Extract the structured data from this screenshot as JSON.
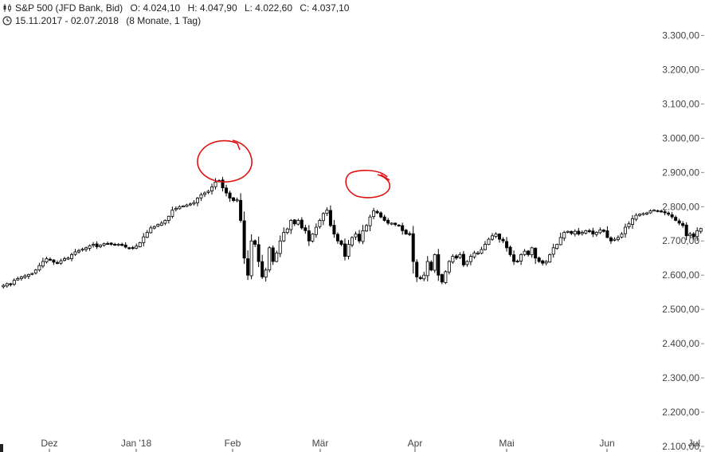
{
  "header": {
    "instrument": "S&P 500 (JFD Bank, Bid)",
    "open": "O: 4.024,10",
    "high": "H: 4.047,90",
    "low": "L: 4.022,60",
    "close": "C: 4.037,10",
    "range": "15.11.2017 - 02.07.2018",
    "period": "(8 Monate, 1 Tag)",
    "instrument_icon": "candlestick-icon",
    "range_icon": "clock-icon"
  },
  "colors": {
    "candle": "#000000",
    "annotation": "#e01010",
    "text": "#444444"
  },
  "chart_data": {
    "type": "candlestick",
    "x_range": [
      "15.11.2017",
      "02.07.2018"
    ],
    "ylim": [
      2100,
      3350
    ],
    "y_ticks": [
      "2.100,00",
      "2.200,00",
      "2.300,00",
      "2.400,00",
      "2.500,00",
      "2.600,00",
      "2.700,00",
      "2.800,00",
      "2.900,00",
      "3.000,00",
      "3.100,00",
      "3.200,00",
      "3.300,00"
    ],
    "x_ticks": [
      "Dez",
      "Jan '18",
      "Feb",
      "Mär",
      "Apr",
      "Mai",
      "Jun",
      "Jul"
    ],
    "grid": false,
    "annotations": [
      "red hand-drawn circle around late-January peak",
      "red hand-drawn circle around mid-March high"
    ],
    "closes": [
      2570,
      2575,
      2573,
      2585,
      2590,
      2595,
      2598,
      2602,
      2605,
      2615,
      2628,
      2640,
      2648,
      2645,
      2638,
      2636,
      2642,
      2648,
      2650,
      2660,
      2668,
      2672,
      2676,
      2680,
      2686,
      2690,
      2683,
      2688,
      2692,
      2692,
      2690,
      2688,
      2690,
      2687,
      2682,
      2680,
      2680,
      2685,
      2695,
      2712,
      2725,
      2738,
      2742,
      2748,
      2752,
      2760,
      2772,
      2790,
      2795,
      2800,
      2802,
      2805,
      2808,
      2812,
      2825,
      2835,
      2840,
      2845,
      2858,
      2872,
      2876,
      2855,
      2840,
      2825,
      2818,
      2820,
      2760,
      2650,
      2600,
      2700,
      2690,
      2640,
      2595,
      2615,
      2680,
      2640,
      2665,
      2700,
      2725,
      2735,
      2760,
      2750,
      2760,
      2738,
      2730,
      2700,
      2720,
      2740,
      2760,
      2780,
      2790,
      2745,
      2720,
      2700,
      2690,
      2655,
      2690,
      2710,
      2720,
      2700,
      2730,
      2745,
      2770,
      2788,
      2782,
      2770,
      2760,
      2752,
      2752,
      2748,
      2745,
      2730,
      2720,
      2720,
      2640,
      2595,
      2590,
      2600,
      2640,
      2615,
      2660,
      2600,
      2580,
      2610,
      2640,
      2655,
      2650,
      2660,
      2630,
      2640,
      2655,
      2665,
      2665,
      2675,
      2690,
      2705,
      2715,
      2720,
      2705,
      2700,
      2680,
      2660,
      2640,
      2640,
      2660,
      2670,
      2660,
      2680,
      2650,
      2640,
      2635,
      2640,
      2660,
      2680,
      2690,
      2710,
      2725,
      2728,
      2722,
      2728,
      2720,
      2725,
      2730,
      2728,
      2720,
      2725,
      2732,
      2728,
      2710,
      2700,
      2705,
      2710,
      2720,
      2740,
      2750,
      2765,
      2775,
      2778,
      2780,
      2782,
      2788,
      2790,
      2788,
      2785,
      2782,
      2778,
      2770,
      2760,
      2752,
      2745,
      2715,
      2720,
      2712,
      2730,
      2736
    ]
  }
}
